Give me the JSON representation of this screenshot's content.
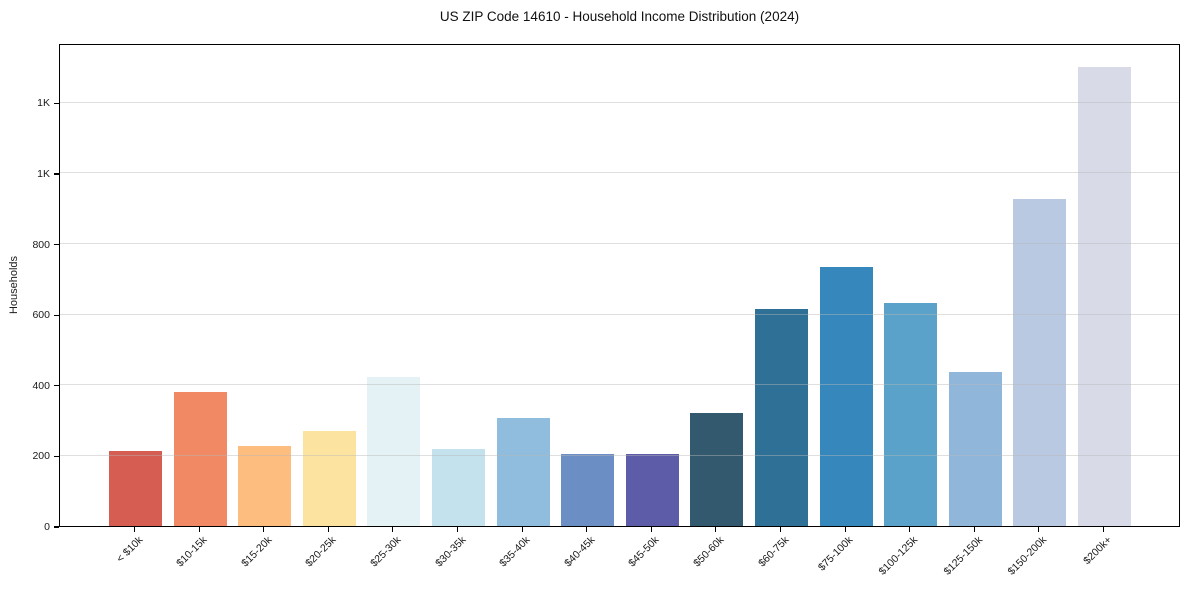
{
  "chart_data": {
    "type": "bar",
    "title": "US ZIP Code 14610 - Household Income Distribution (2024)",
    "xlabel": "",
    "ylabel": "Households",
    "categories": [
      "< $10k",
      "$10-15k",
      "$15-20k",
      "$20-25k",
      "$25-30k",
      "$30-35k",
      "$35-40k",
      "$40-45k",
      "$45-50k",
      "$50-60k",
      "$60-75k",
      "$75-100k",
      "$100-125k",
      "$125-150k",
      "$150-200k",
      "$200k+"
    ],
    "values": [
      212,
      380,
      227,
      268,
      421,
      217,
      307,
      204,
      205,
      321,
      615,
      733,
      633,
      437,
      925,
      1300
    ],
    "bar_colors": [
      "#d65d52",
      "#f18a64",
      "#fcbd7f",
      "#fde3a0",
      "#e4f1f5",
      "#c4e1ee",
      "#90bddd",
      "#6b8ec4",
      "#5c5ca9",
      "#33596e",
      "#2f7096",
      "#3687bb",
      "#5aa2c9",
      "#90b7da",
      "#bac9e2",
      "#d8dae8"
    ],
    "y_ticks": [
      {
        "value": 0,
        "label": "0"
      },
      {
        "value": 200,
        "label": "200"
      },
      {
        "value": 400,
        "label": "400"
      },
      {
        "value": 600,
        "label": "600"
      },
      {
        "value": 800,
        "label": "800"
      },
      {
        "value": 1000,
        "label": "1K"
      },
      {
        "value": 1200,
        "label": "1K"
      }
    ],
    "ylim": [
      0,
      1368
    ],
    "grid": "horizontal",
    "legend": "none",
    "colors": {
      "axis": "#000000",
      "grid": "#e6e6e6",
      "text": "#1a1a1a",
      "background": "#ffffff"
    }
  }
}
